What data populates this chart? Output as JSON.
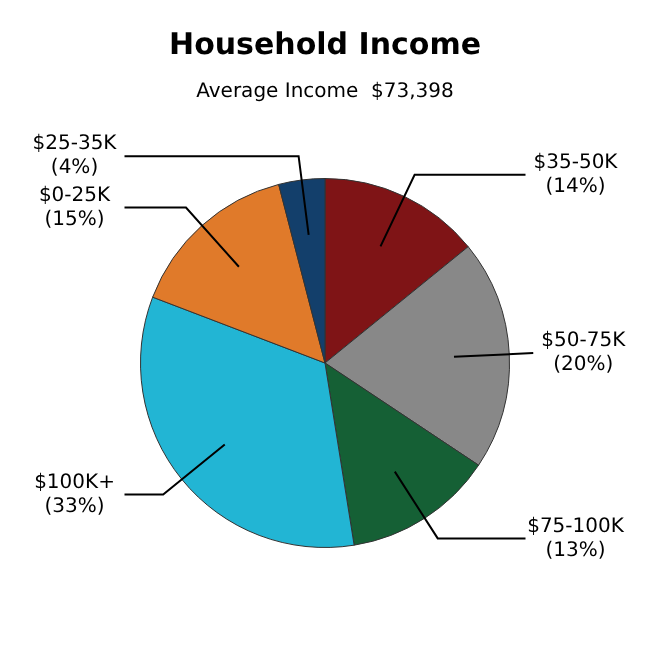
{
  "chart_data": {
    "type": "pie",
    "title": "Household Income",
    "subtitle": "Average Income  $73,398",
    "categories": [
      "$35-50K",
      "$50-75K",
      "$75-100K",
      "$100K+",
      "$0-25K",
      "$25-35K"
    ],
    "values": [
      14,
      20,
      13,
      33,
      15,
      4
    ],
    "value_labels": [
      "(14%)",
      "(20%)",
      "(13%)",
      "(33%)",
      "(15%)",
      "(4%)"
    ],
    "colors": [
      "#7f1416",
      "#888888",
      "#156035",
      "#22b5d4",
      "#e07a2a",
      "#133f6b"
    ],
    "legend": false
  }
}
